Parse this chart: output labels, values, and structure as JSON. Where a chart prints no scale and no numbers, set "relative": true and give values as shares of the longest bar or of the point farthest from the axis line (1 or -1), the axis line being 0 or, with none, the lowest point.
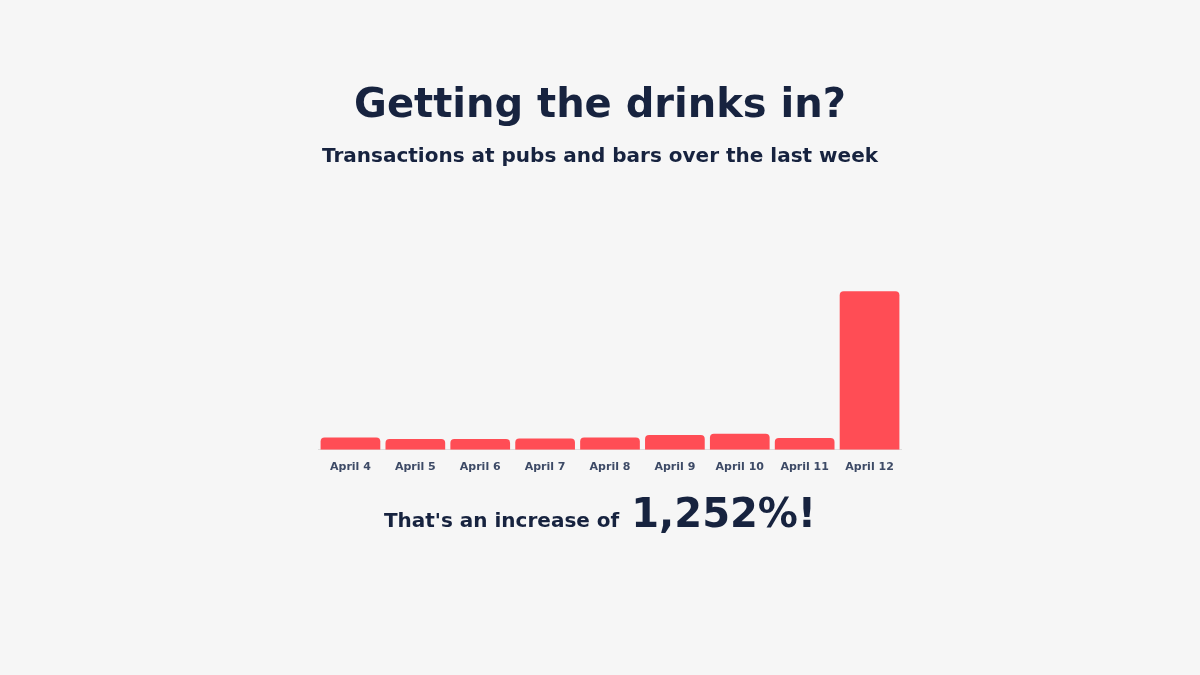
{
  "chart_data": {
    "type": "bar",
    "title": "Getting the drinks in?",
    "subtitle": "Transactions at pubs and bars over the last week",
    "categories": [
      "April 4",
      "April 5",
      "April 6",
      "April 7",
      "April 8",
      "April 9",
      "April 10",
      "April 11",
      "April 12"
    ],
    "values": [
      0.077,
      0.068,
      0.068,
      0.072,
      0.077,
      0.094,
      0.102,
      0.074,
      1
    ],
    "color": "#ff4d55",
    "relative": true,
    "annotations": [
      "That's an increase of",
      "1,252%!"
    ]
  }
}
